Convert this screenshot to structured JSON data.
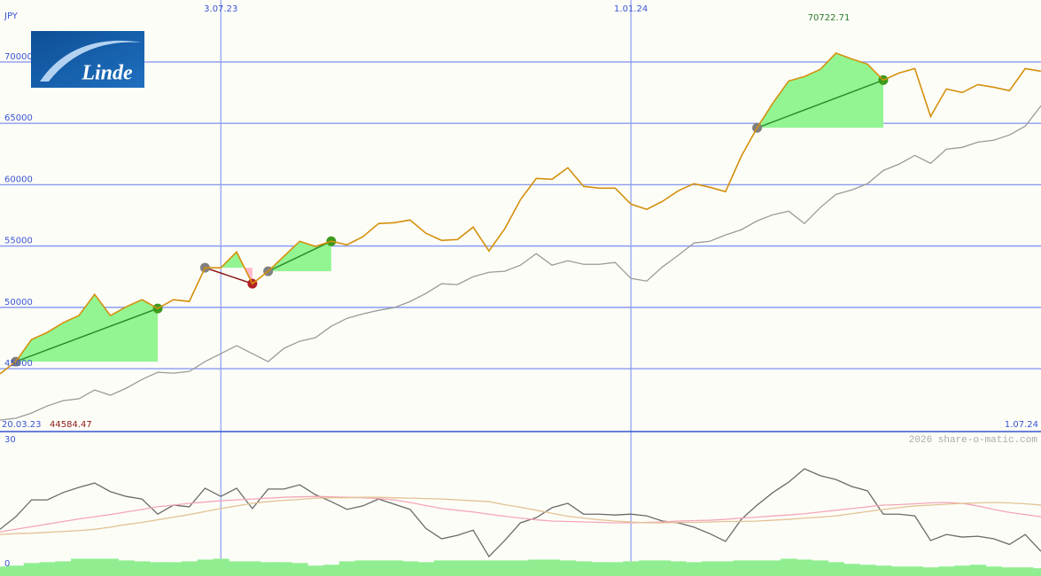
{
  "logo": "Linde",
  "credit": "2026 share-o-matic.com",
  "chart_data": [
    {
      "type": "line",
      "unit": "JPY",
      "categories": [
        "20.03.23",
        null,
        null,
        null,
        null,
        null,
        null,
        null,
        null,
        null,
        null,
        null,
        null,
        null,
        "3.07.23",
        null,
        null,
        null,
        null,
        null,
        null,
        null,
        null,
        null,
        null,
        null,
        null,
        null,
        null,
        null,
        null,
        null,
        null,
        null,
        null,
        null,
        null,
        null,
        null,
        null,
        "1.01.24",
        null,
        null,
        null,
        null,
        null,
        null,
        null,
        null,
        null,
        null,
        null,
        null,
        null,
        null,
        null,
        null,
        null,
        null,
        null,
        null,
        null,
        null,
        null,
        null,
        null,
        "1.07.24"
      ],
      "ylim": [
        39880,
        75050
      ],
      "yticks": [
        45000,
        50000,
        55000,
        60000,
        65000,
        70000
      ],
      "grid": true,
      "max_label": 70722.71,
      "min_label": 44584.47,
      "series": [
        {
          "color": "#d4900c",
          "values": [
            44580,
            45580,
            47380,
            47960,
            48750,
            49330,
            51060,
            49330,
            50050,
            50630,
            49910,
            50630,
            50480,
            53230,
            53230,
            54520,
            51930,
            52940,
            54160,
            55390,
            54960,
            55390,
            55100,
            55750,
            56830,
            56900,
            57120,
            56040,
            55460,
            55530,
            56540,
            54600,
            56400,
            58780,
            60510,
            60440,
            61380,
            59860,
            59720,
            59720,
            58420,
            57990,
            58640,
            59500,
            60080,
            59790,
            59430,
            62320,
            64630,
            66650,
            68450,
            68810,
            69390,
            70722.71,
            70250,
            69820,
            68520,
            69100,
            69460,
            65560,
            67800,
            67510,
            68160,
            67940,
            67660,
            69460,
            69240
          ]
        },
        {
          "color": "#9a9a9a",
          "values": [
            40820,
            40960,
            41390,
            41970,
            42400,
            42550,
            43270,
            42840,
            43410,
            44130,
            44710,
            44640,
            44780,
            45580,
            46230,
            46880,
            46230,
            45580,
            46660,
            47240,
            47530,
            48460,
            49110,
            49470,
            49760,
            49980,
            50480,
            51130,
            51930,
            51850,
            52500,
            52860,
            52940,
            53440,
            54380,
            53440,
            53800,
            53510,
            53510,
            53660,
            52360,
            52140,
            53300,
            54240,
            55250,
            55390,
            55900,
            56330,
            57050,
            57550,
            57840,
            56830,
            58130,
            59210,
            59570,
            60080,
            61160,
            61670,
            62390,
            61740,
            62890,
            63040,
            63470,
            63620,
            64050,
            64770,
            66430
          ]
        }
      ],
      "trades": [
        {
          "start": 1,
          "end": 10
        },
        {
          "start": 13,
          "end": 16
        },
        {
          "start": 17,
          "end": 21
        },
        {
          "start": 48,
          "end": 56
        }
      ],
      "trade_colors": {
        "gain_fill": "#92f592",
        "loss_fill": "#ffb8c8",
        "gain_line": "#2e8b2e",
        "loss_line": "#8b1a1a",
        "entry_marker": "#808080",
        "gain_marker": "#3c9a1c",
        "loss_marker": "#b22222"
      },
      "axis_color": "#3a55d0",
      "grid_color": "#8a9cf0"
    },
    {
      "type": "line",
      "ylim": [
        -1.6,
        31.8
      ],
      "yticks": [
        0,
        30
      ],
      "grid": false,
      "series": [
        {
          "color": "#6a6a6a",
          "values": [
            9.2,
            12.1,
            16.0,
            16.0,
            17.7,
            18.9,
            19.9,
            17.9,
            16.8,
            16.2,
            12.7,
            14.8,
            14.4,
            18.7,
            16.8,
            18.7,
            14.0,
            18.5,
            18.5,
            19.5,
            17.2,
            15.6,
            13.8,
            14.6,
            16.2,
            15.0,
            13.8,
            9.4,
            7.0,
            7.8,
            9.0,
            2.9,
            6.6,
            10.7,
            11.9,
            14.2,
            15.2,
            12.7,
            12.7,
            12.5,
            12.7,
            12.3,
            11.1,
            10.7,
            9.7,
            8.2,
            6.4,
            11.5,
            14.8,
            17.7,
            20.1,
            23.2,
            21.6,
            20.7,
            19.1,
            18.1,
            12.7,
            12.7,
            12.3,
            6.6,
            8.0,
            7.4,
            7.6,
            7.0,
            5.7,
            8.0,
            4.1
          ]
        },
        {
          "color": "#f4a6b8",
          "values": [
            8.6,
            9.2,
            9.8,
            10.4,
            11.0,
            11.6,
            12.1,
            12.6,
            13.2,
            13.8,
            14.4,
            14.8,
            15.2,
            15.5,
            15.8,
            16.0,
            16.2,
            16.4,
            16.6,
            16.7,
            16.8,
            16.7,
            16.6,
            16.5,
            16.3,
            16.0,
            15.4,
            14.7,
            14.0,
            13.6,
            13.2,
            12.7,
            12.2,
            11.8,
            11.4,
            11.1,
            11.0,
            10.9,
            10.8,
            10.7,
            10.7,
            10.8,
            10.9,
            11.1,
            11.2,
            11.3,
            11.5,
            11.8,
            12.0,
            12.3,
            12.5,
            12.8,
            13.2,
            13.6,
            14.0,
            14.4,
            14.8,
            14.9,
            15.1,
            15.3,
            15.4,
            15.2,
            14.6,
            13.8,
            13.1,
            12.6,
            12.1
          ]
        },
        {
          "color": "#e2c294",
          "values": [
            8.0,
            8.2,
            8.3,
            8.5,
            8.7,
            8.9,
            9.2,
            9.7,
            10.3,
            10.8,
            11.4,
            12.0,
            12.6,
            13.3,
            14.0,
            14.6,
            15.2,
            15.6,
            15.9,
            16.1,
            16.4,
            16.5,
            16.5,
            16.6,
            16.6,
            16.5,
            16.4,
            16.3,
            16.2,
            16.0,
            15.8,
            15.6,
            14.9,
            14.3,
            13.6,
            12.9,
            12.2,
            11.8,
            11.4,
            11.1,
            10.9,
            10.7,
            10.7,
            10.8,
            10.8,
            10.9,
            11.0,
            11.0,
            11.1,
            11.3,
            11.5,
            11.8,
            12.0,
            12.3,
            12.8,
            13.3,
            13.8,
            14.2,
            14.6,
            14.8,
            15.0,
            15.2,
            15.3,
            15.4,
            15.3,
            15.1,
            14.8
          ]
        }
      ],
      "bars": {
        "color": "#90ee90",
        "values": [
          0.6,
          0.8,
          1.4,
          1.6,
          1.8,
          2.4,
          2.4,
          2.4,
          2.0,
          1.8,
          1.6,
          1.6,
          1.8,
          2.2,
          2.4,
          1.8,
          1.8,
          1.6,
          1.6,
          1.4,
          0.8,
          1.0,
          1.8,
          2.0,
          2.0,
          2.0,
          1.8,
          1.6,
          2.0,
          2.0,
          2.0,
          2.0,
          2.0,
          2.0,
          2.2,
          2.2,
          2.0,
          1.8,
          1.6,
          1.6,
          1.8,
          2.0,
          2.0,
          1.8,
          1.6,
          1.8,
          1.8,
          2.0,
          2.0,
          2.0,
          2.4,
          2.2,
          2.0,
          1.6,
          1.2,
          1.0,
          0.8,
          0.6,
          0.6,
          0.4,
          0.6,
          0.8,
          1.0,
          0.6,
          0.4,
          0.4,
          0.2
        ]
      }
    }
  ]
}
